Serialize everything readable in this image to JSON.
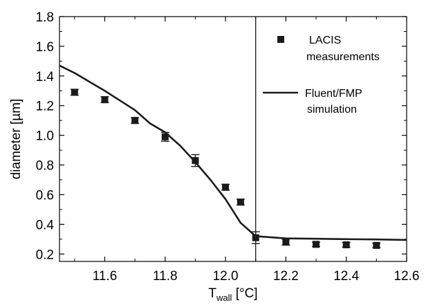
{
  "chart_data": {
    "type": "scatter",
    "xlabel": {
      "main": "T",
      "sub": "wall",
      "unit": " [°C]"
    },
    "ylabel": "diameter [µm]",
    "xlim": [
      11.45,
      12.6
    ],
    "ylim": [
      0.15,
      1.8
    ],
    "xticks": [
      "11.6",
      "11.8",
      "12.0",
      "12.2",
      "12.4",
      "12.6"
    ],
    "yticks": [
      "0.2",
      "0.4",
      "0.6",
      "0.8",
      "1.0",
      "1.2",
      "1.4",
      "1.6",
      "1.8"
    ],
    "vertical_line_x": 12.1,
    "legend": [
      {
        "label_line1": "LACIS",
        "label_line2": "measurements",
        "marker": "square"
      },
      {
        "label_line1": "Fluent/FMP",
        "label_line2": "simulation",
        "marker": "line"
      }
    ],
    "series": [
      {
        "name": "LACIS measurements",
        "kind": "points",
        "color": "#1a1a1a",
        "x": [
          11.5,
          11.6,
          11.7,
          11.8,
          11.9,
          12.0,
          12.05,
          12.1,
          12.2,
          12.3,
          12.4,
          12.5
        ],
        "y": [
          1.29,
          1.24,
          1.1,
          0.99,
          0.83,
          0.65,
          0.55,
          0.31,
          0.28,
          0.265,
          0.262,
          0.258
        ],
        "err": [
          0.02,
          0.02,
          0.02,
          0.03,
          0.04,
          0.02,
          0.02,
          0.04,
          0.02,
          0.015,
          0.015,
          0.015
        ]
      },
      {
        "name": "Fluent/FMP simulation",
        "kind": "line",
        "color": "#1a1a1a",
        "x": [
          11.45,
          11.5,
          11.6,
          11.7,
          11.75,
          11.8,
          11.85,
          11.9,
          11.95,
          12.0,
          12.05,
          12.1,
          12.2,
          12.3,
          12.4,
          12.5,
          12.6
        ],
        "y": [
          1.47,
          1.42,
          1.3,
          1.17,
          1.08,
          1.02,
          0.93,
          0.82,
          0.7,
          0.57,
          0.41,
          0.32,
          0.305,
          0.303,
          0.3,
          0.298,
          0.295
        ]
      }
    ]
  }
}
